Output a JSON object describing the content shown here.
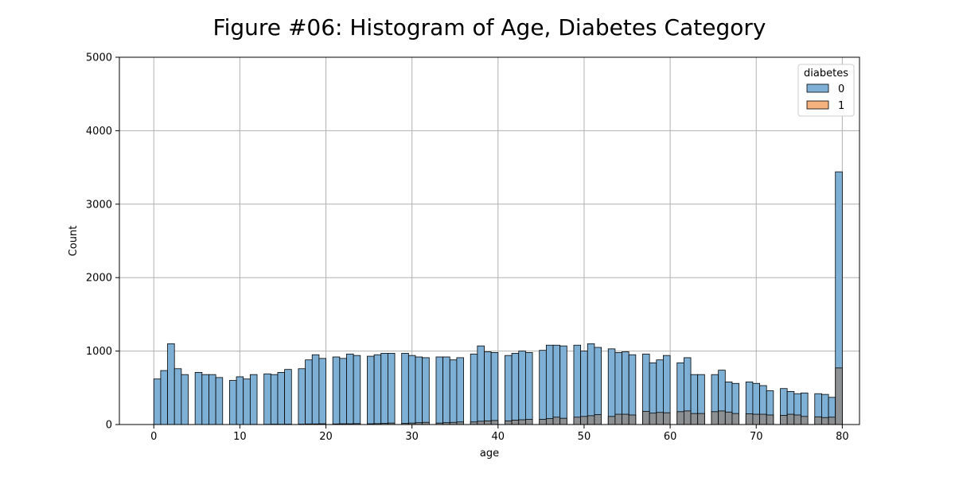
{
  "chart_data": {
    "type": "bar",
    "title": "Figure #06: Histogram of Age, Diabetes Category",
    "xlabel": "age",
    "ylabel": "Count",
    "xlim": [
      -4,
      82
    ],
    "ylim": [
      0,
      5000
    ],
    "xticks": [
      0,
      10,
      20,
      30,
      40,
      50,
      60,
      70,
      80
    ],
    "yticks": [
      0,
      1000,
      2000,
      3000,
      4000,
      5000
    ],
    "grid": true,
    "legend": {
      "title": "diabetes",
      "placement": "top-right",
      "entries": [
        "0",
        "1"
      ]
    },
    "bin_width": 0.8,
    "colors": {
      "0": "#7eb0d5",
      "1": "#f5b27f",
      "overlap": "#8e8e8e",
      "edge": "#000000"
    },
    "series": [
      {
        "name": "0",
        "bins": [
          {
            "x": 0.0,
            "value": 620
          },
          {
            "x": 0.8,
            "value": 735
          },
          {
            "x": 1.6,
            "value": 1100
          },
          {
            "x": 2.4,
            "value": 760
          },
          {
            "x": 3.2,
            "value": 680
          },
          {
            "x": 4.8,
            "value": 710
          },
          {
            "x": 5.6,
            "value": 680
          },
          {
            "x": 6.4,
            "value": 680
          },
          {
            "x": 7.2,
            "value": 640
          },
          {
            "x": 8.8,
            "value": 600
          },
          {
            "x": 9.6,
            "value": 650
          },
          {
            "x": 10.4,
            "value": 620
          },
          {
            "x": 11.2,
            "value": 680
          },
          {
            "x": 12.8,
            "value": 690
          },
          {
            "x": 13.6,
            "value": 680
          },
          {
            "x": 14.4,
            "value": 710
          },
          {
            "x": 15.2,
            "value": 750
          },
          {
            "x": 16.8,
            "value": 760
          },
          {
            "x": 17.6,
            "value": 880
          },
          {
            "x": 18.4,
            "value": 950
          },
          {
            "x": 19.2,
            "value": 900
          },
          {
            "x": 20.8,
            "value": 920
          },
          {
            "x": 21.6,
            "value": 900
          },
          {
            "x": 22.4,
            "value": 960
          },
          {
            "x": 23.2,
            "value": 940
          },
          {
            "x": 24.8,
            "value": 930
          },
          {
            "x": 25.6,
            "value": 950
          },
          {
            "x": 26.4,
            "value": 970
          },
          {
            "x": 27.2,
            "value": 970
          },
          {
            "x": 28.8,
            "value": 970
          },
          {
            "x": 29.6,
            "value": 940
          },
          {
            "x": 30.4,
            "value": 920
          },
          {
            "x": 31.2,
            "value": 910
          },
          {
            "x": 32.8,
            "value": 920
          },
          {
            "x": 33.6,
            "value": 920
          },
          {
            "x": 34.4,
            "value": 880
          },
          {
            "x": 35.2,
            "value": 910
          },
          {
            "x": 36.8,
            "value": 960
          },
          {
            "x": 37.6,
            "value": 1070
          },
          {
            "x": 38.4,
            "value": 990
          },
          {
            "x": 39.2,
            "value": 980
          },
          {
            "x": 40.8,
            "value": 940
          },
          {
            "x": 41.6,
            "value": 970
          },
          {
            "x": 42.4,
            "value": 1000
          },
          {
            "x": 43.2,
            "value": 980
          },
          {
            "x": 44.8,
            "value": 1010
          },
          {
            "x": 45.6,
            "value": 1080
          },
          {
            "x": 46.4,
            "value": 1080
          },
          {
            "x": 47.2,
            "value": 1070
          },
          {
            "x": 48.8,
            "value": 1080
          },
          {
            "x": 49.6,
            "value": 1000
          },
          {
            "x": 50.4,
            "value": 1100
          },
          {
            "x": 51.2,
            "value": 1050
          },
          {
            "x": 52.8,
            "value": 1030
          },
          {
            "x": 53.6,
            "value": 980
          },
          {
            "x": 54.4,
            "value": 990
          },
          {
            "x": 55.2,
            "value": 950
          },
          {
            "x": 56.8,
            "value": 960
          },
          {
            "x": 57.6,
            "value": 840
          },
          {
            "x": 58.4,
            "value": 880
          },
          {
            "x": 59.2,
            "value": 940
          },
          {
            "x": 60.8,
            "value": 840
          },
          {
            "x": 61.6,
            "value": 910
          },
          {
            "x": 62.4,
            "value": 680
          },
          {
            "x": 63.2,
            "value": 680
          },
          {
            "x": 64.8,
            "value": 680
          },
          {
            "x": 65.6,
            "value": 740
          },
          {
            "x": 66.4,
            "value": 580
          },
          {
            "x": 67.2,
            "value": 560
          },
          {
            "x": 68.8,
            "value": 580
          },
          {
            "x": 69.6,
            "value": 560
          },
          {
            "x": 70.4,
            "value": 530
          },
          {
            "x": 71.2,
            "value": 460
          },
          {
            "x": 72.8,
            "value": 490
          },
          {
            "x": 73.6,
            "value": 450
          },
          {
            "x": 74.4,
            "value": 420
          },
          {
            "x": 75.2,
            "value": 430
          },
          {
            "x": 76.8,
            "value": 420
          },
          {
            "x": 77.6,
            "value": 410
          },
          {
            "x": 78.4,
            "value": 370
          },
          {
            "x": 79.2,
            "value": 3440
          }
        ]
      },
      {
        "name": "1",
        "bins": [
          {
            "x": 0.0,
            "value": 0
          },
          {
            "x": 0.8,
            "value": 0
          },
          {
            "x": 1.6,
            "value": 0
          },
          {
            "x": 2.4,
            "value": 0
          },
          {
            "x": 3.2,
            "value": 0
          },
          {
            "x": 4.8,
            "value": 0
          },
          {
            "x": 5.6,
            "value": 0
          },
          {
            "x": 6.4,
            "value": 0
          },
          {
            "x": 7.2,
            "value": 0
          },
          {
            "x": 8.8,
            "value": 0
          },
          {
            "x": 9.6,
            "value": 0
          },
          {
            "x": 10.4,
            "value": 0
          },
          {
            "x": 11.2,
            "value": 2
          },
          {
            "x": 12.8,
            "value": 3
          },
          {
            "x": 13.6,
            "value": 5
          },
          {
            "x": 14.4,
            "value": 4
          },
          {
            "x": 15.2,
            "value": 5
          },
          {
            "x": 16.8,
            "value": 5
          },
          {
            "x": 17.6,
            "value": 8
          },
          {
            "x": 18.4,
            "value": 8
          },
          {
            "x": 19.2,
            "value": 10
          },
          {
            "x": 20.8,
            "value": 8
          },
          {
            "x": 21.6,
            "value": 10
          },
          {
            "x": 22.4,
            "value": 10
          },
          {
            "x": 23.2,
            "value": 12
          },
          {
            "x": 24.8,
            "value": 10
          },
          {
            "x": 25.6,
            "value": 12
          },
          {
            "x": 26.4,
            "value": 15
          },
          {
            "x": 27.2,
            "value": 20
          },
          {
            "x": 28.8,
            "value": 15
          },
          {
            "x": 29.6,
            "value": 20
          },
          {
            "x": 30.4,
            "value": 25
          },
          {
            "x": 31.2,
            "value": 30
          },
          {
            "x": 32.8,
            "value": 20
          },
          {
            "x": 33.6,
            "value": 25
          },
          {
            "x": 34.4,
            "value": 30
          },
          {
            "x": 35.2,
            "value": 35
          },
          {
            "x": 36.8,
            "value": 35
          },
          {
            "x": 37.6,
            "value": 45
          },
          {
            "x": 38.4,
            "value": 50
          },
          {
            "x": 39.2,
            "value": 55
          },
          {
            "x": 40.8,
            "value": 50
          },
          {
            "x": 41.6,
            "value": 60
          },
          {
            "x": 42.4,
            "value": 65
          },
          {
            "x": 43.2,
            "value": 70
          },
          {
            "x": 44.8,
            "value": 70
          },
          {
            "x": 45.6,
            "value": 80
          },
          {
            "x": 46.4,
            "value": 100
          },
          {
            "x": 47.2,
            "value": 85
          },
          {
            "x": 48.8,
            "value": 100
          },
          {
            "x": 49.6,
            "value": 110
          },
          {
            "x": 50.4,
            "value": 120
          },
          {
            "x": 51.2,
            "value": 135
          },
          {
            "x": 52.8,
            "value": 110
          },
          {
            "x": 53.6,
            "value": 140
          },
          {
            "x": 54.4,
            "value": 140
          },
          {
            "x": 55.2,
            "value": 130
          },
          {
            "x": 56.8,
            "value": 180
          },
          {
            "x": 57.6,
            "value": 155
          },
          {
            "x": 58.4,
            "value": 165
          },
          {
            "x": 59.2,
            "value": 160
          },
          {
            "x": 60.8,
            "value": 175
          },
          {
            "x": 61.6,
            "value": 185
          },
          {
            "x": 62.4,
            "value": 150
          },
          {
            "x": 63.2,
            "value": 150
          },
          {
            "x": 64.8,
            "value": 175
          },
          {
            "x": 65.6,
            "value": 185
          },
          {
            "x": 66.4,
            "value": 170
          },
          {
            "x": 67.2,
            "value": 150
          },
          {
            "x": 68.8,
            "value": 145
          },
          {
            "x": 69.6,
            "value": 140
          },
          {
            "x": 70.4,
            "value": 140
          },
          {
            "x": 71.2,
            "value": 130
          },
          {
            "x": 72.8,
            "value": 125
          },
          {
            "x": 73.6,
            "value": 140
          },
          {
            "x": 74.4,
            "value": 130
          },
          {
            "x": 75.2,
            "value": 110
          },
          {
            "x": 76.8,
            "value": 105
          },
          {
            "x": 77.6,
            "value": 95
          },
          {
            "x": 78.4,
            "value": 100
          },
          {
            "x": 79.2,
            "value": 770
          }
        ]
      }
    ]
  }
}
